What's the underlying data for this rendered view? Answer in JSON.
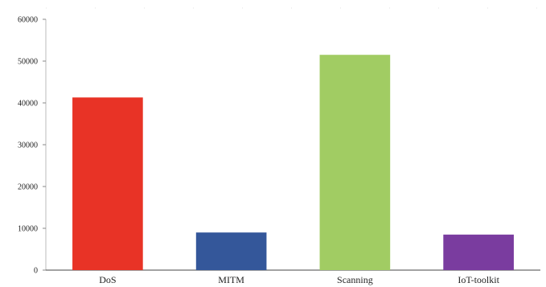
{
  "chart_data": {
    "type": "bar",
    "title": "",
    "xlabel": "",
    "ylabel": "",
    "categories": [
      "DoS",
      "MITM",
      "Scanning",
      "IoT-toolkit"
    ],
    "values": [
      41300,
      9000,
      51500,
      8500
    ],
    "ylim": [
      0,
      60000
    ],
    "yticks": [
      "0",
      "10000",
      "20000",
      "30000",
      "40000",
      "50000",
      "60000"
    ],
    "colors": [
      "#e83326",
      "#34579a",
      "#a1cc63",
      "#7a3c9f"
    ],
    "grid": false,
    "legend": "none"
  }
}
